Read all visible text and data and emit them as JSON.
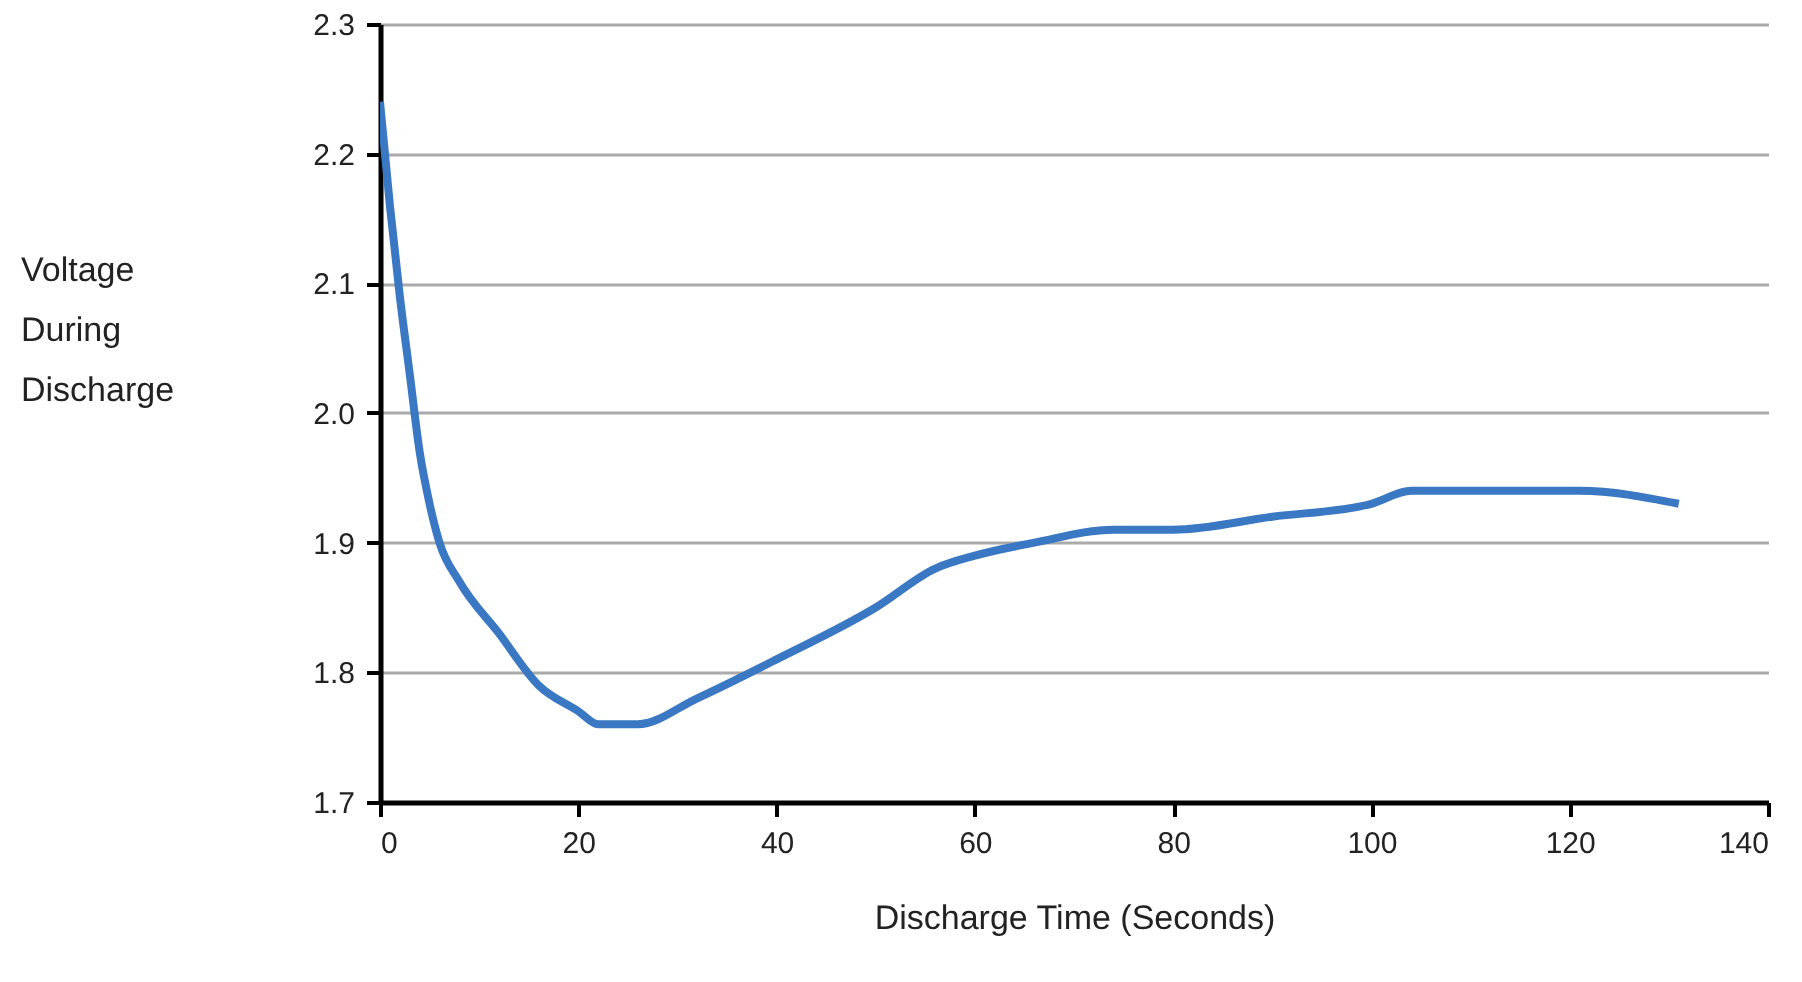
{
  "chart_data": {
    "type": "line",
    "xlabel": "Discharge Time (Seconds)",
    "ylabel": "Voltage During Discharge",
    "x": [
      0,
      1,
      2,
      3,
      4,
      5,
      6,
      8,
      12,
      16,
      20,
      22,
      26,
      32,
      40,
      50,
      56,
      60,
      66,
      74,
      80,
      90,
      100,
      104,
      110,
      121,
      131
    ],
    "series": [
      {
        "color": "#3a78c4",
        "values": [
          2.24,
          2.16,
          2.09,
          2.03,
          1.97,
          1.93,
          1.9,
          1.87,
          1.83,
          1.79,
          1.77,
          1.76,
          1.76,
          1.78,
          1.81,
          1.85,
          1.88,
          1.89,
          1.9,
          1.91,
          1.91,
          1.92,
          1.93,
          1.94,
          1.94,
          1.94,
          1.93
        ]
      }
    ],
    "xlim": [
      0,
      140
    ],
    "xticks": [
      0,
      20,
      40,
      60,
      80,
      100,
      120,
      140
    ],
    "ylim": [
      1.7,
      2.3
    ],
    "yticks": [
      1.7,
      1.8,
      1.9,
      {
        "value": 2,
        "label": "2.0"
      },
      2.1,
      2.2,
      2.3
    ],
    "grid": "y",
    "marker": "none",
    "line_style": "solid"
  }
}
